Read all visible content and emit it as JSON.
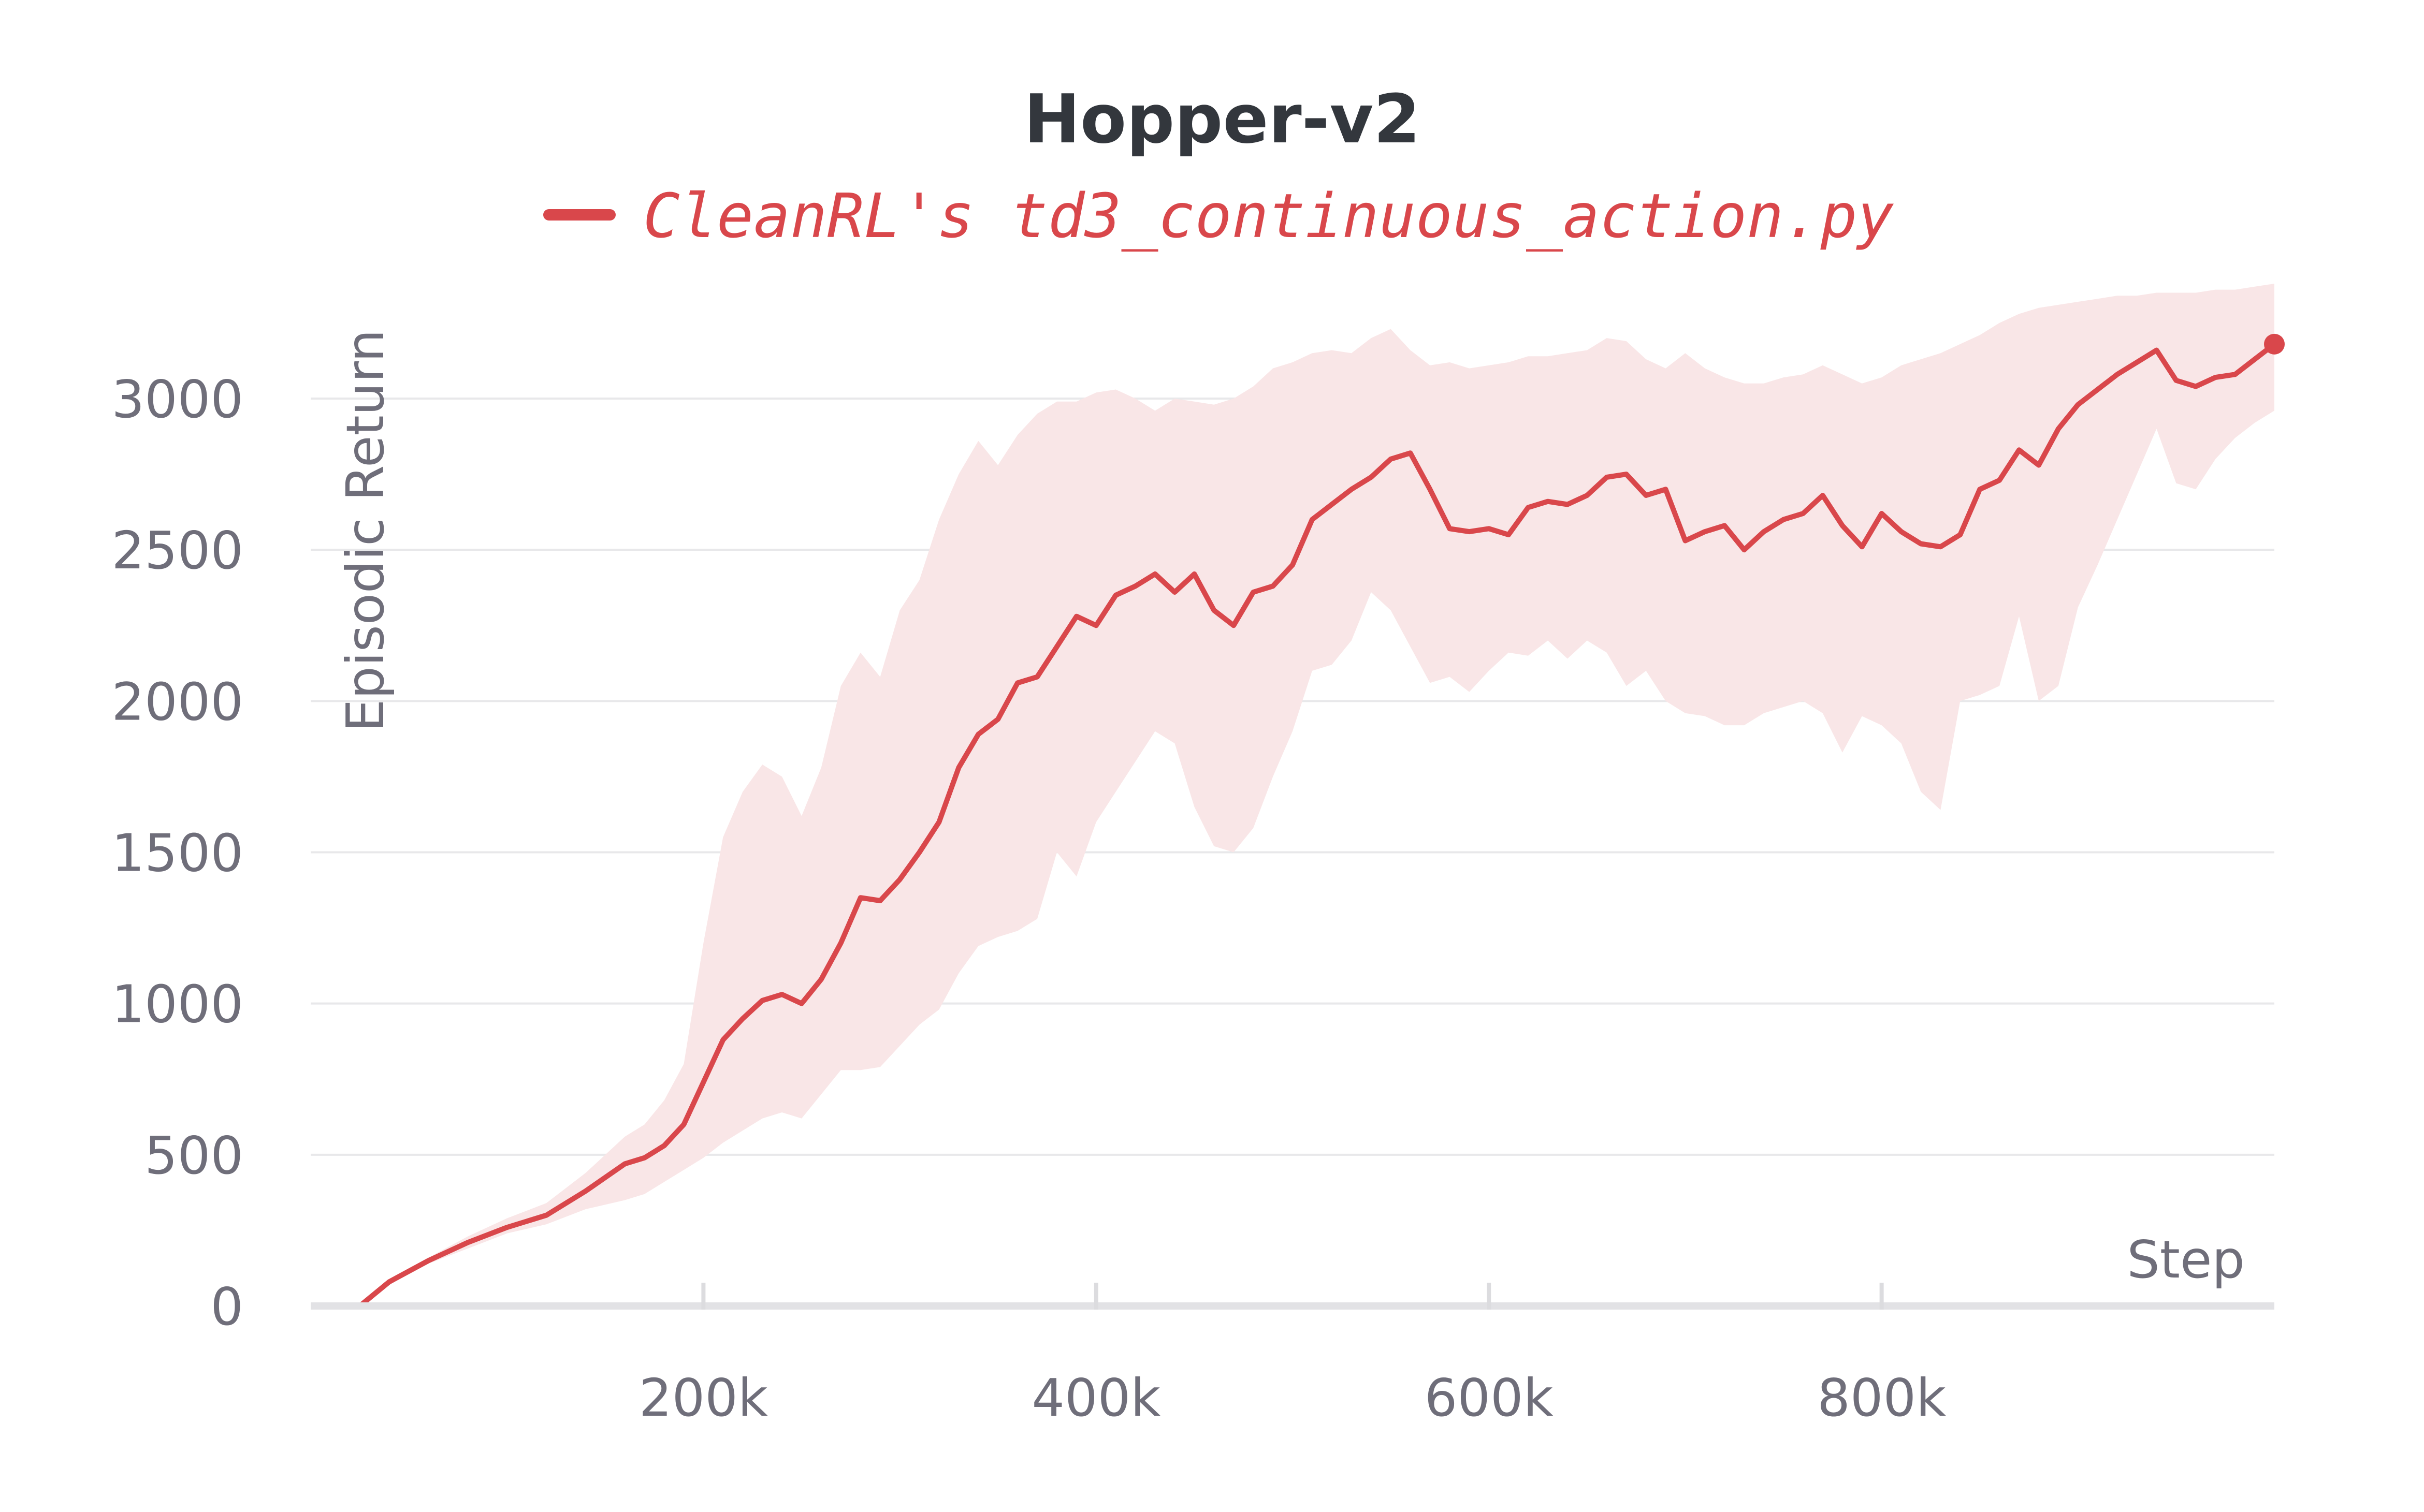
{
  "chart_data": {
    "type": "line",
    "title": "Hopper-v2",
    "xlabel": "Step",
    "ylabel": "Episodic Return",
    "xlim": [
      0,
      1000000
    ],
    "ylim": [
      0,
      3400
    ],
    "x_ticks": [
      200000,
      400000,
      600000,
      800000
    ],
    "x_tick_labels": [
      "200k",
      "400k",
      "600k",
      "800k"
    ],
    "y_ticks": [
      0,
      500,
      1000,
      1500,
      2000,
      2500,
      3000
    ],
    "y_tick_labels": [
      "0",
      "500",
      "1000",
      "1500",
      "2000",
      "2500",
      "3000"
    ],
    "grid": true,
    "legend_position": "top-center",
    "series": [
      {
        "name": "CleanRL's td3_continuous_action.py",
        "color": "#d9474b",
        "band_color": "#f9e6e7",
        "x": [
          0,
          25000,
          40000,
          60000,
          80000,
          100000,
          120000,
          140000,
          160000,
          170000,
          180000,
          190000,
          200000,
          210000,
          220000,
          230000,
          240000,
          250000,
          260000,
          270000,
          280000,
          290000,
          300000,
          310000,
          320000,
          330000,
          340000,
          350000,
          360000,
          370000,
          380000,
          390000,
          400000,
          410000,
          420000,
          430000,
          440000,
          450000,
          460000,
          470000,
          480000,
          490000,
          500000,
          510000,
          520000,
          530000,
          540000,
          550000,
          560000,
          570000,
          580000,
          590000,
          600000,
          610000,
          620000,
          630000,
          640000,
          650000,
          660000,
          670000,
          680000,
          690000,
          700000,
          710000,
          720000,
          730000,
          740000,
          750000,
          760000,
          770000,
          780000,
          790000,
          800000,
          810000,
          820000,
          830000,
          840000,
          850000,
          860000,
          870000,
          880000,
          890000,
          900000,
          910000,
          920000,
          930000,
          940000,
          950000,
          960000,
          970000,
          980000,
          990000,
          1000000
        ],
        "mean": [
          0,
          0,
          80,
          150,
          210,
          260,
          300,
          380,
          470,
          490,
          530,
          600,
          740,
          880,
          950,
          1010,
          1030,
          1000,
          1080,
          1200,
          1350,
          1340,
          1410,
          1500,
          1600,
          1780,
          1890,
          1940,
          2060,
          2080,
          2180,
          2280,
          2250,
          2350,
          2380,
          2420,
          2360,
          2420,
          2300,
          2250,
          2360,
          2380,
          2450,
          2600,
          2650,
          2700,
          2740,
          2800,
          2820,
          2700,
          2570,
          2560,
          2570,
          2550,
          2640,
          2660,
          2650,
          2680,
          2740,
          2750,
          2680,
          2700,
          2530,
          2560,
          2580,
          2500,
          2560,
          2600,
          2620,
          2680,
          2580,
          2510,
          2620,
          2560,
          2520,
          2510,
          2550,
          2700,
          2730,
          2830,
          2780,
          2900,
          2980,
          3030,
          3080,
          3120,
          3160,
          3060,
          3040,
          3070,
          3080,
          3130,
          3180
        ],
        "upper": [
          0,
          0,
          85,
          160,
          230,
          290,
          340,
          440,
          560,
          600,
          680,
          800,
          1200,
          1550,
          1700,
          1790,
          1750,
          1620,
          1780,
          2050,
          2160,
          2080,
          2300,
          2400,
          2600,
          2750,
          2860,
          2780,
          2880,
          2950,
          2990,
          2990,
          3020,
          3030,
          3000,
          2960,
          3000,
          2990,
          2980,
          3000,
          3040,
          3100,
          3120,
          3150,
          3160,
          3150,
          3200,
          3230,
          3160,
          3110,
          3120,
          3100,
          3110,
          3120,
          3140,
          3140,
          3150,
          3160,
          3200,
          3190,
          3130,
          3100,
          3150,
          3100,
          3070,
          3050,
          3050,
          3070,
          3080,
          3110,
          3080,
          3050,
          3070,
          3110,
          3130,
          3150,
          3180,
          3210,
          3250,
          3280,
          3300,
          3310,
          3320,
          3330,
          3340,
          3340,
          3350,
          3350,
          3350,
          3360,
          3360,
          3370,
          3380
        ],
        "lower": [
          0,
          0,
          75,
          140,
          190,
          240,
          270,
          320,
          350,
          370,
          410,
          450,
          490,
          540,
          580,
          620,
          640,
          620,
          700,
          780,
          780,
          790,
          860,
          930,
          980,
          1100,
          1190,
          1220,
          1240,
          1280,
          1500,
          1420,
          1600,
          1700,
          1800,
          1900,
          1860,
          1650,
          1520,
          1500,
          1580,
          1750,
          1900,
          2100,
          2120,
          2200,
          2360,
          2300,
          2180,
          2060,
          2080,
          2030,
          2100,
          2160,
          2150,
          2200,
          2140,
          2200,
          2160,
          2050,
          2100,
          2000,
          1960,
          1950,
          1920,
          1920,
          1960,
          1980,
          2000,
          1960,
          1830,
          1950,
          1920,
          1860,
          1700,
          1640,
          2000,
          2020,
          2050,
          2280,
          2000,
          2050,
          2310,
          2450,
          2600,
          2750,
          2900,
          2720,
          2700,
          2800,
          2870,
          2920,
          2960
        ]
      }
    ]
  }
}
